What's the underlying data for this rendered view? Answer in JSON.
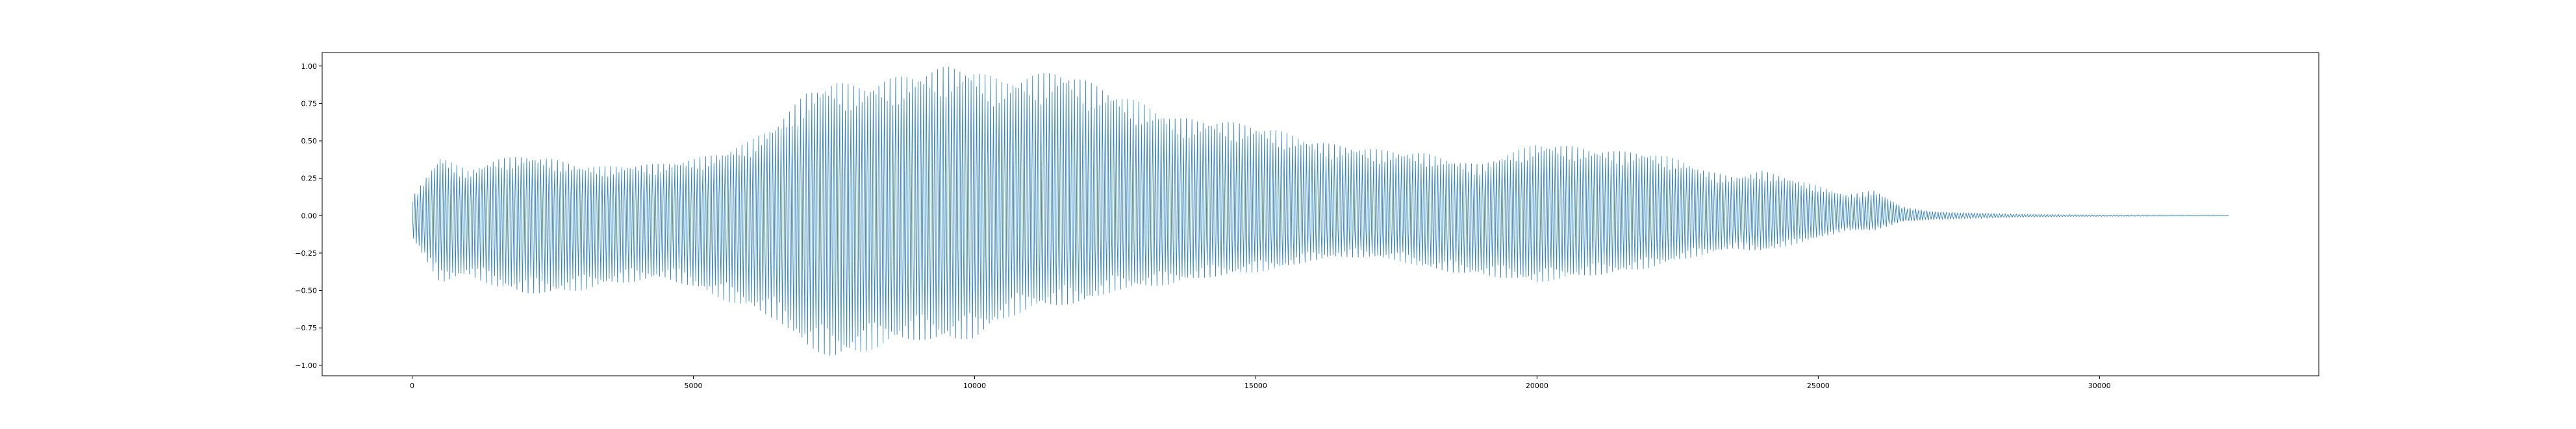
{
  "chart_data": {
    "type": "line",
    "title": "",
    "xlabel": "",
    "ylabel": "",
    "xlim": [
      -1600,
      33900
    ],
    "ylim": [
      -1.07,
      1.09
    ],
    "x_ticks": [
      0,
      5000,
      10000,
      15000,
      20000,
      25000,
      30000
    ],
    "x_tick_labels": [
      "0",
      "5000",
      "10000",
      "15000",
      "20000",
      "25000",
      "30000"
    ],
    "y_ticks": [
      -1.0,
      -0.75,
      -0.5,
      -0.25,
      0.0,
      0.25,
      0.5,
      0.75,
      1.0
    ],
    "y_tick_labels": [
      "−1.00",
      "−0.75",
      "−0.50",
      "−0.25",
      "0.00",
      "0.25",
      "0.50",
      "0.75",
      "1.00"
    ],
    "grid": false,
    "legend": "none",
    "colors": {
      "line": "#1f77b4",
      "axes": "#000000",
      "background": "#ffffff"
    },
    "series": [
      {
        "sample_count": 32300,
        "x_start": 0,
        "x_end": 32300,
        "envelope_x": [
          0,
          500,
          1000,
          1500,
          2000,
          2500,
          3000,
          3500,
          4000,
          4500,
          5000,
          5500,
          6000,
          6500,
          7000,
          7500,
          8000,
          8500,
          9000,
          9500,
          10000,
          10500,
          11000,
          11500,
          12000,
          12500,
          13000,
          13500,
          14000,
          14500,
          15000,
          15500,
          16000,
          16500,
          17000,
          17500,
          18000,
          18500,
          19000,
          19500,
          20000,
          20500,
          21000,
          21500,
          22000,
          22500,
          23000,
          23500,
          24000,
          24500,
          25000,
          25500,
          26000,
          26500,
          27000,
          27500,
          28000,
          28500,
          29000,
          30000,
          31000,
          32300
        ],
        "envelope_upper": [
          0.12,
          0.4,
          0.3,
          0.38,
          0.4,
          0.38,
          0.33,
          0.33,
          0.34,
          0.35,
          0.38,
          0.42,
          0.5,
          0.62,
          0.82,
          0.9,
          0.86,
          0.92,
          0.95,
          1.0,
          0.98,
          0.9,
          0.94,
          0.97,
          0.9,
          0.82,
          0.75,
          0.66,
          0.64,
          0.63,
          0.6,
          0.56,
          0.5,
          0.47,
          0.45,
          0.43,
          0.42,
          0.37,
          0.34,
          0.42,
          0.48,
          0.47,
          0.44,
          0.43,
          0.42,
          0.38,
          0.3,
          0.26,
          0.3,
          0.25,
          0.2,
          0.14,
          0.17,
          0.06,
          0.03,
          0.02,
          0.015,
          0.01,
          0.008,
          0.005,
          0.003,
          0.002
        ],
        "envelope_lower": [
          -0.15,
          -0.45,
          -0.4,
          -0.48,
          -0.52,
          -0.52,
          -0.5,
          -0.46,
          -0.44,
          -0.42,
          -0.48,
          -0.56,
          -0.62,
          -0.7,
          -0.88,
          -0.95,
          -0.92,
          -0.85,
          -0.83,
          -0.84,
          -0.82,
          -0.7,
          -0.62,
          -0.6,
          -0.58,
          -0.5,
          -0.48,
          -0.46,
          -0.42,
          -0.4,
          -0.38,
          -0.35,
          -0.3,
          -0.28,
          -0.28,
          -0.3,
          -0.35,
          -0.38,
          -0.4,
          -0.42,
          -0.45,
          -0.42,
          -0.4,
          -0.38,
          -0.35,
          -0.3,
          -0.26,
          -0.22,
          -0.24,
          -0.2,
          -0.15,
          -0.1,
          -0.1,
          -0.04,
          -0.03,
          -0.02,
          -0.015,
          -0.01,
          -0.008,
          -0.005,
          -0.003,
          -0.002
        ]
      }
    ]
  }
}
